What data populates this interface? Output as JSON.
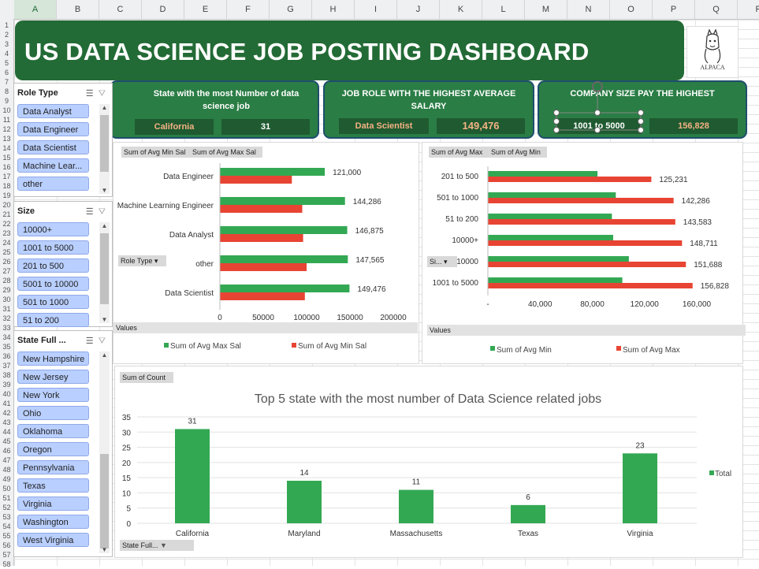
{
  "sheet": {
    "columns": [
      "A",
      "B",
      "C",
      "D",
      "E",
      "F",
      "G",
      "H",
      "I",
      "J",
      "K",
      "L",
      "M",
      "N",
      "O",
      "P",
      "Q",
      "R"
    ],
    "rows": [
      "1",
      "2",
      "3",
      "4",
      "5",
      "6",
      "7",
      "8",
      "9",
      "10",
      "11",
      "12",
      "13",
      "14",
      "15",
      "16",
      "17",
      "18",
      "19",
      "20",
      "21",
      "22",
      "23",
      "24",
      "25",
      "26",
      "27",
      "28",
      "29",
      "30",
      "31",
      "32",
      "33",
      "34",
      "35",
      "36",
      "37",
      "38",
      "39",
      "40",
      "41",
      "42",
      "43",
      "44",
      "45",
      "46",
      "47",
      "48",
      "49",
      "50",
      "51",
      "52",
      "53",
      "54",
      "55",
      "56",
      "57",
      "58"
    ]
  },
  "dashboard": {
    "title": "US DATA SCIENCE JOB POSTING DASHBOARD",
    "logo_text": "ALPACA"
  },
  "kpis": [
    {
      "title": "State with the most Number of data science job",
      "label": "California",
      "value": "31"
    },
    {
      "title": "JOB ROLE WITH THE HIGHEST AVERAGE SALARY",
      "label": "Data Scientist",
      "value": "149,476"
    },
    {
      "title": "COMPANY SIZE PAY THE HIGHEST",
      "label": "1001 to 5000",
      "value": "156,828"
    }
  ],
  "slicers": {
    "role": {
      "header": "Role Type",
      "items": [
        "Data Analyst",
        "Data Engineer",
        "Data Scientist",
        "Machine Lear...",
        "other"
      ]
    },
    "size": {
      "header": "Size",
      "items": [
        "10000+",
        "1001 to 5000",
        "201 to 500",
        "5001 to 10000",
        "501 to 1000",
        "51 to 200"
      ]
    },
    "state": {
      "header": "State Full ...",
      "items": [
        "New Hampshire",
        "New Jersey",
        "New York",
        "Ohio",
        "Oklahoma",
        "Oregon",
        "Pennsylvania",
        "Texas",
        "Virginia",
        "Washington",
        "West Virginia"
      ]
    }
  },
  "charts": {
    "role": {
      "field_buttons": [
        "Sum of Avg Min Sal",
        "Sum of Avg Max Sal"
      ],
      "axis_button": "Role Type",
      "values_label": "Values",
      "legend": [
        "Sum of Avg Max Sal",
        "Sum of Avg Min Sal"
      ]
    },
    "size": {
      "field_buttons": [
        "Sum of Avg Max",
        "Sum of Avg Min"
      ],
      "axis_button": "Si...",
      "values_label": "Values",
      "legend": [
        "Sum of Avg Min",
        "Sum of Avg Max"
      ]
    },
    "state": {
      "field_button": "Sum of Count",
      "axis_button": "State Full..."
    }
  },
  "chart_data": [
    {
      "type": "bar",
      "orientation": "horizontal",
      "categories": [
        "Data Engineer",
        "Machine Learning Engineer",
        "Data Analyst",
        "other",
        "Data Scientist"
      ],
      "series": [
        {
          "name": "Sum of Avg Max Sal",
          "values": [
            121000,
            144286,
            146875,
            147565,
            149476
          ],
          "color": "#33a853"
        },
        {
          "name": "Sum of Avg Min Sal",
          "values": [
            83000,
            95000,
            96000,
            100000,
            98000
          ],
          "color": "#e84433"
        }
      ],
      "data_labels": [
        "121,000",
        "144,286",
        "146,875",
        "147,565",
        "149,476"
      ],
      "x_ticks": [
        "0",
        "50000",
        "100000",
        "150000",
        "200000"
      ],
      "xlim": [
        0,
        200000
      ],
      "legend_position": "bottom"
    },
    {
      "type": "bar",
      "orientation": "horizontal",
      "categories": [
        "201 to 500",
        "501 to 1000",
        "51 to 200",
        "10000+",
        "10000",
        "1001 to 5000"
      ],
      "series": [
        {
          "name": "Sum of Avg Min",
          "values": [
            84000,
            98000,
            95000,
            96000,
            108000,
            103000
          ],
          "color": "#33a853"
        },
        {
          "name": "Sum of Avg Max",
          "values": [
            125231,
            142286,
            143583,
            148711,
            151688,
            156828
          ],
          "color": "#e84433"
        }
      ],
      "data_labels": [
        "125,231",
        "142,286",
        "143,583",
        "148,711",
        "151,688",
        "156,828"
      ],
      "x_ticks": [
        "-",
        "40,000",
        "80,000",
        "120,000",
        "160,000"
      ],
      "xlim": [
        0,
        160000
      ],
      "legend_position": "bottom"
    },
    {
      "type": "bar",
      "title": "Top 5 state with the most number of Data Science related jobs",
      "categories": [
        "California",
        "Maryland",
        "Massachusetts",
        "Texas",
        "Virginia"
      ],
      "series": [
        {
          "name": "Total",
          "values": [
            31,
            14,
            11,
            6,
            23
          ],
          "color": "#33a853"
        }
      ],
      "y_ticks": [
        "0",
        "5",
        "10",
        "15",
        "20",
        "25",
        "30",
        "35"
      ],
      "ylim": [
        0,
        35
      ],
      "grid": true,
      "legend_position": "right"
    }
  ]
}
